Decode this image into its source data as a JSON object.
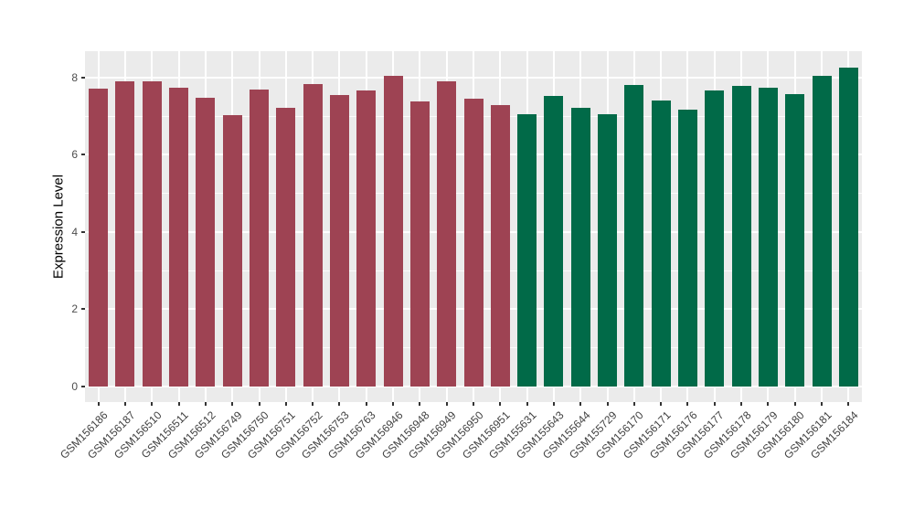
{
  "chart_data": {
    "type": "bar",
    "title": "",
    "xlabel": "",
    "ylabel": "Expression Level",
    "ylim": [
      0,
      8.69
    ],
    "yticks": [
      0,
      2,
      4,
      6,
      8
    ],
    "ytick_labels": [
      "0",
      "2",
      "4",
      "6",
      "8"
    ],
    "grid": "major-and-minor-white-on-gray",
    "legend_position": "none",
    "panel_background": "#EBEBEB",
    "gridline_color": "#FFFFFF",
    "axis_text_color": "#4D4D4D",
    "categories": [
      "GSM156186",
      "GSM156187",
      "GSM156510",
      "GSM156511",
      "GSM156512",
      "GSM156749",
      "GSM156750",
      "GSM156751",
      "GSM156752",
      "GSM156753",
      "GSM156763",
      "GSM156946",
      "GSM156948",
      "GSM156949",
      "GSM156950",
      "GSM156951",
      "GSM155631",
      "GSM155643",
      "GSM155644",
      "GSM155729",
      "GSM156170",
      "GSM156171",
      "GSM156176",
      "GSM156177",
      "GSM156178",
      "GSM156179",
      "GSM156180",
      "GSM156181",
      "GSM156184"
    ],
    "values": [
      7.71,
      7.9,
      7.9,
      7.73,
      7.48,
      7.02,
      7.7,
      7.21,
      7.84,
      7.55,
      7.66,
      8.06,
      7.38,
      7.9,
      7.46,
      7.3,
      7.06,
      7.54,
      7.21,
      7.05,
      7.82,
      7.42,
      7.18,
      7.68,
      7.78,
      7.74,
      7.58,
      8.04,
      8.26
    ],
    "bar_groups": [
      "A",
      "A",
      "A",
      "A",
      "A",
      "A",
      "A",
      "A",
      "A",
      "A",
      "A",
      "A",
      "A",
      "A",
      "A",
      "A",
      "B",
      "B",
      "B",
      "B",
      "B",
      "B",
      "B",
      "B",
      "B",
      "B",
      "B",
      "B",
      "B"
    ],
    "group_colors": {
      "A": "#9E4353",
      "B": "#016A48"
    }
  }
}
